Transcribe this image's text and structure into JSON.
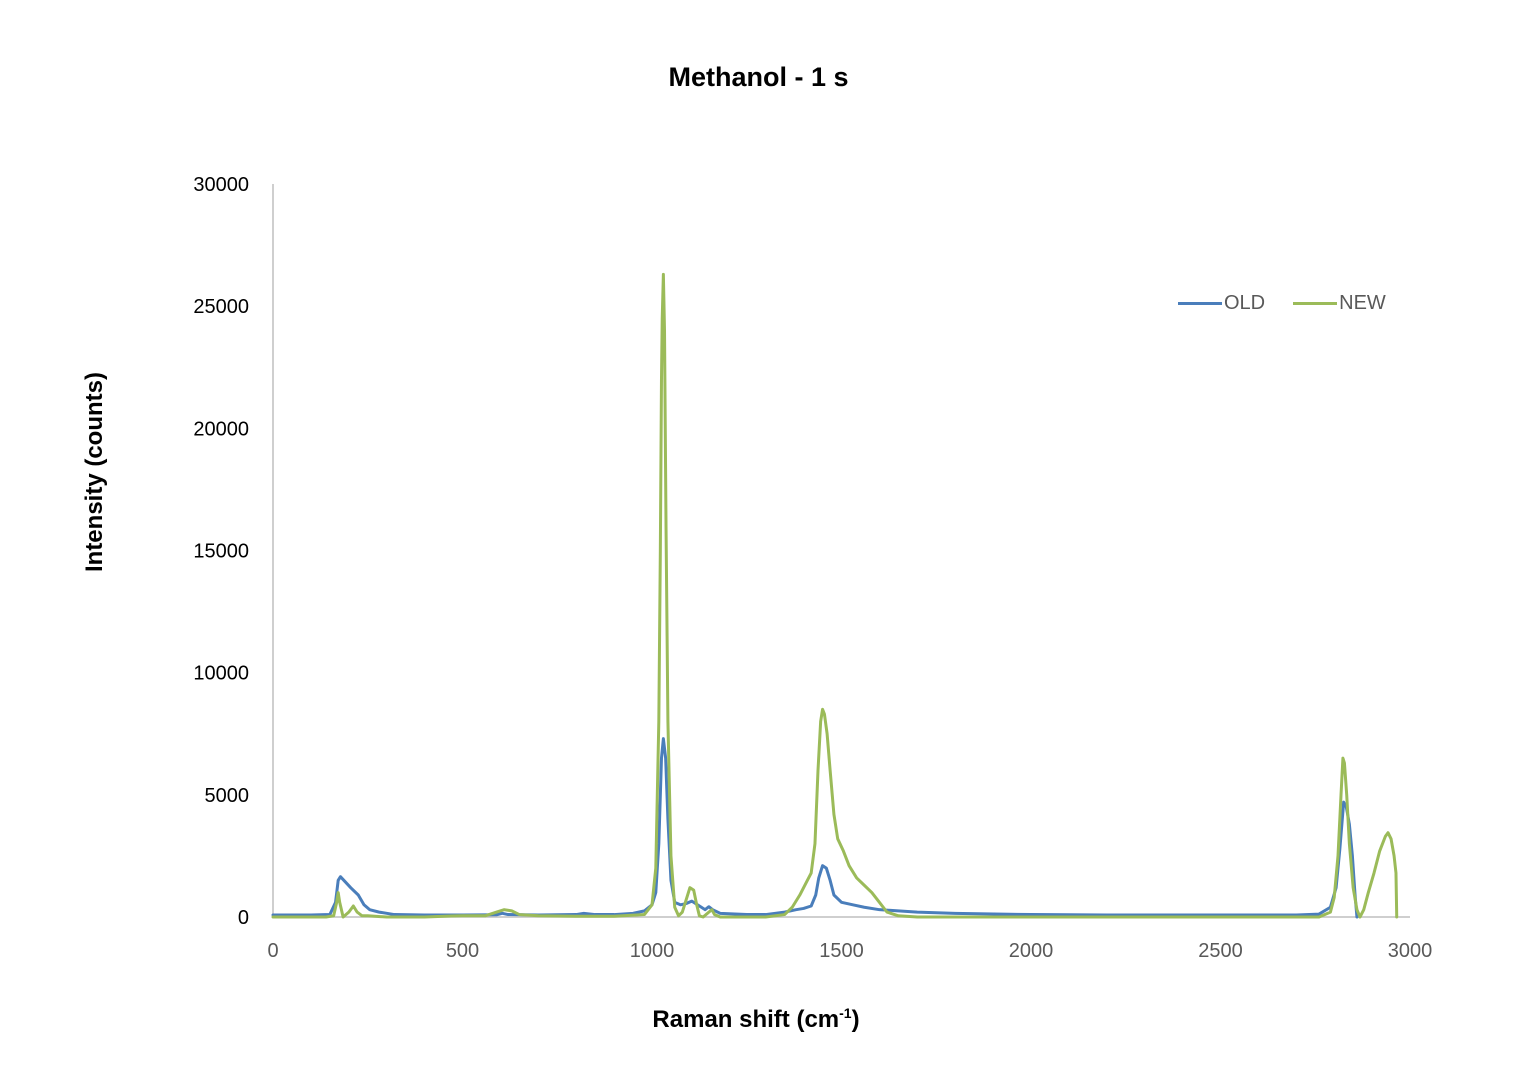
{
  "chart_data": {
    "type": "line",
    "title": "Methanol - 1 s",
    "xlabel_main": "Raman shift (cm",
    "xlabel_sup": "-1",
    "xlabel_end": ")",
    "ylabel": "Intensity (counts)",
    "xlim": [
      0,
      3000
    ],
    "ylim": [
      0,
      30000
    ],
    "x_ticks": [
      0,
      500,
      1000,
      1500,
      2000,
      2500,
      3000
    ],
    "x_tick_labels": [
      "0",
      "500",
      "1000",
      "1500",
      "2000",
      "2500",
      "3000"
    ],
    "y_ticks": [
      0,
      5000,
      10000,
      15000,
      20000,
      25000,
      30000
    ],
    "y_tick_labels": [
      "0",
      "5000",
      "10000",
      "15000",
      "20000",
      "25000",
      "30000"
    ],
    "grid": false,
    "legend_position": "top-right",
    "series": [
      {
        "name": "OLD",
        "color": "#4a7ebb",
        "points": [
          [
            0,
            80
          ],
          [
            100,
            80
          ],
          [
            150,
            100
          ],
          [
            165,
            600
          ],
          [
            172,
            1500
          ],
          [
            178,
            1650
          ],
          [
            190,
            1450
          ],
          [
            205,
            1200
          ],
          [
            225,
            900
          ],
          [
            240,
            500
          ],
          [
            255,
            300
          ],
          [
            280,
            200
          ],
          [
            320,
            100
          ],
          [
            400,
            80
          ],
          [
            500,
            80
          ],
          [
            590,
            90
          ],
          [
            605,
            150
          ],
          [
            620,
            100
          ],
          [
            700,
            80
          ],
          [
            800,
            100
          ],
          [
            820,
            150
          ],
          [
            850,
            100
          ],
          [
            900,
            100
          ],
          [
            950,
            150
          ],
          [
            980,
            250
          ],
          [
            1000,
            500
          ],
          [
            1010,
            1000
          ],
          [
            1018,
            3000
          ],
          [
            1025,
            6500
          ],
          [
            1030,
            7300
          ],
          [
            1036,
            6500
          ],
          [
            1042,
            4000
          ],
          [
            1050,
            1500
          ],
          [
            1060,
            600
          ],
          [
            1075,
            500
          ],
          [
            1090,
            550
          ],
          [
            1105,
            650
          ],
          [
            1120,
            500
          ],
          [
            1140,
            300
          ],
          [
            1150,
            420
          ],
          [
            1160,
            300
          ],
          [
            1180,
            150
          ],
          [
            1250,
            100
          ],
          [
            1300,
            100
          ],
          [
            1350,
            200
          ],
          [
            1380,
            300
          ],
          [
            1400,
            350
          ],
          [
            1420,
            450
          ],
          [
            1432,
            900
          ],
          [
            1440,
            1600
          ],
          [
            1450,
            2100
          ],
          [
            1460,
            2000
          ],
          [
            1470,
            1500
          ],
          [
            1480,
            900
          ],
          [
            1500,
            600
          ],
          [
            1530,
            500
          ],
          [
            1560,
            400
          ],
          [
            1600,
            300
          ],
          [
            1650,
            250
          ],
          [
            1700,
            200
          ],
          [
            1800,
            150
          ],
          [
            2000,
            100
          ],
          [
            2200,
            80
          ],
          [
            2400,
            80
          ],
          [
            2600,
            80
          ],
          [
            2700,
            80
          ],
          [
            2760,
            120
          ],
          [
            2790,
            400
          ],
          [
            2805,
            1200
          ],
          [
            2815,
            2800
          ],
          [
            2825,
            4700
          ],
          [
            2832,
            4500
          ],
          [
            2840,
            3800
          ],
          [
            2848,
            2500
          ],
          [
            2855,
            900
          ],
          [
            2860,
            0
          ]
        ]
      },
      {
        "name": "NEW",
        "color": "#9bbb59",
        "points": [
          [
            0,
            0
          ],
          [
            140,
            0
          ],
          [
            160,
            50
          ],
          [
            168,
            600
          ],
          [
            172,
            1000
          ],
          [
            176,
            600
          ],
          [
            185,
            0
          ],
          [
            200,
            200
          ],
          [
            212,
            450
          ],
          [
            222,
            200
          ],
          [
            235,
            50
          ],
          [
            250,
            50
          ],
          [
            300,
            0
          ],
          [
            400,
            0
          ],
          [
            470,
            40
          ],
          [
            500,
            50
          ],
          [
            560,
            50
          ],
          [
            590,
            200
          ],
          [
            610,
            300
          ],
          [
            630,
            250
          ],
          [
            650,
            100
          ],
          [
            700,
            50
          ],
          [
            800,
            30
          ],
          [
            900,
            30
          ],
          [
            980,
            100
          ],
          [
            1000,
            500
          ],
          [
            1010,
            2000
          ],
          [
            1018,
            8000
          ],
          [
            1022,
            15000
          ],
          [
            1025,
            22000
          ],
          [
            1027,
            24500
          ],
          [
            1030,
            26300
          ],
          [
            1033,
            24000
          ],
          [
            1037,
            16000
          ],
          [
            1042,
            8000
          ],
          [
            1050,
            2500
          ],
          [
            1060,
            400
          ],
          [
            1070,
            50
          ],
          [
            1080,
            200
          ],
          [
            1090,
            700
          ],
          [
            1100,
            1200
          ],
          [
            1110,
            1100
          ],
          [
            1118,
            500
          ],
          [
            1125,
            50
          ],
          [
            1135,
            0
          ],
          [
            1150,
            200
          ],
          [
            1158,
            300
          ],
          [
            1165,
            100
          ],
          [
            1180,
            0
          ],
          [
            1300,
            0
          ],
          [
            1350,
            100
          ],
          [
            1370,
            400
          ],
          [
            1390,
            900
          ],
          [
            1410,
            1500
          ],
          [
            1420,
            1800
          ],
          [
            1430,
            3000
          ],
          [
            1438,
            6000
          ],
          [
            1445,
            8000
          ],
          [
            1450,
            8500
          ],
          [
            1455,
            8300
          ],
          [
            1462,
            7500
          ],
          [
            1470,
            6000
          ],
          [
            1480,
            4200
          ],
          [
            1490,
            3200
          ],
          [
            1505,
            2700
          ],
          [
            1520,
            2100
          ],
          [
            1540,
            1600
          ],
          [
            1560,
            1300
          ],
          [
            1580,
            1000
          ],
          [
            1600,
            600
          ],
          [
            1620,
            200
          ],
          [
            1650,
            50
          ],
          [
            1700,
            0
          ],
          [
            2000,
            0
          ],
          [
            2500,
            0
          ],
          [
            2760,
            0
          ],
          [
            2790,
            200
          ],
          [
            2800,
            800
          ],
          [
            2810,
            2500
          ],
          [
            2818,
            5000
          ],
          [
            2823,
            6500
          ],
          [
            2827,
            6300
          ],
          [
            2833,
            5000
          ],
          [
            2840,
            3000
          ],
          [
            2850,
            1200
          ],
          [
            2860,
            300
          ],
          [
            2868,
            0
          ],
          [
            2878,
            300
          ],
          [
            2890,
            1000
          ],
          [
            2905,
            1800
          ],
          [
            2920,
            2700
          ],
          [
            2935,
            3300
          ],
          [
            2942,
            3450
          ],
          [
            2950,
            3200
          ],
          [
            2958,
            2500
          ],
          [
            2963,
            1800
          ],
          [
            2965,
            0
          ]
        ]
      }
    ]
  }
}
